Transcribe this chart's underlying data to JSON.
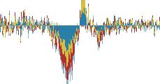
{
  "background": "#ffffff",
  "zero_line_color": "#999999",
  "colors": [
    "#2a7fa8",
    "#d4c040",
    "#b03030",
    "#8ab8c8",
    "#e8a0a0"
  ],
  "figsize": [
    2.3,
    1.2
  ],
  "dpi": 100,
  "ylim": [
    -5.8,
    2.5
  ],
  "n_bars": 680,
  "bar_width": 1.0,
  "seeds": [
    17,
    99,
    53,
    7
  ]
}
